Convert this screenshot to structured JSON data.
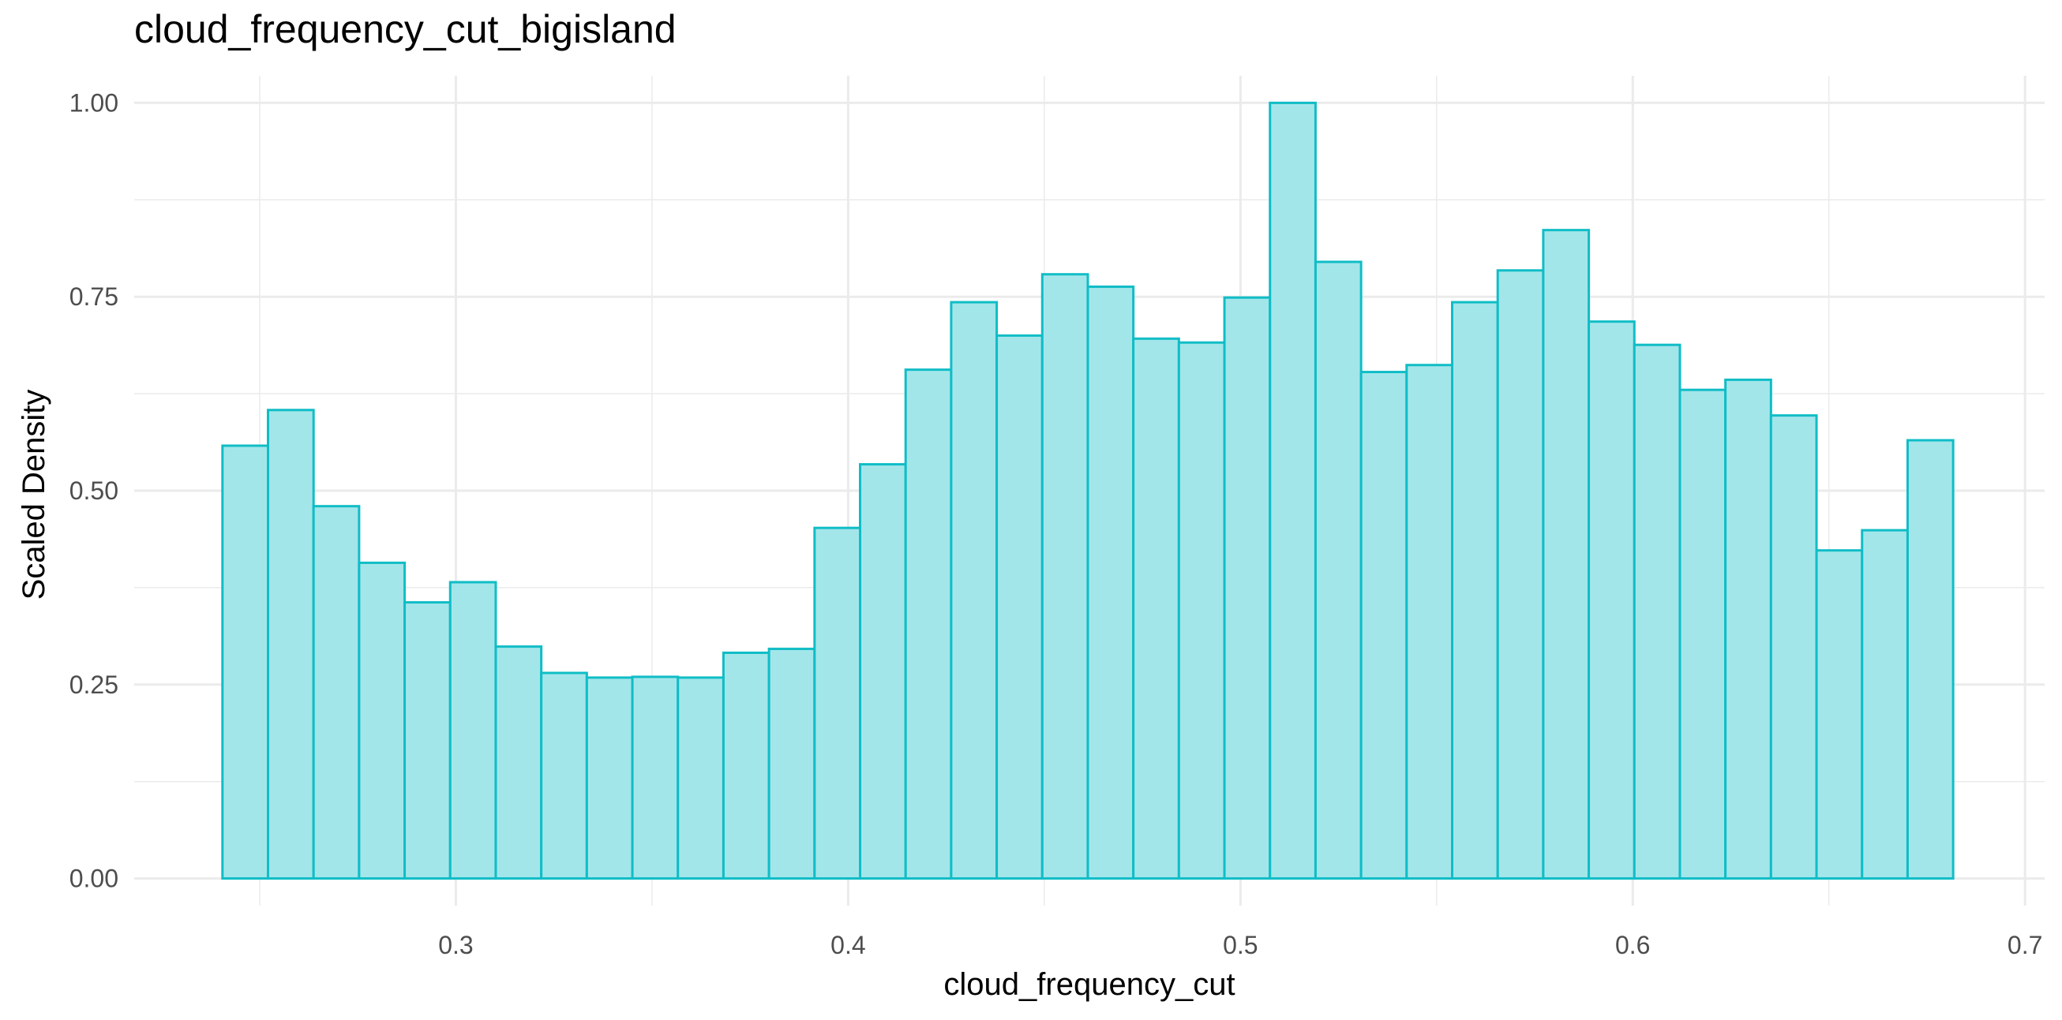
{
  "chart_data": {
    "type": "bar",
    "title": "cloud_frequency_cut_bigisland",
    "xlabel": "cloud_frequency_cut",
    "ylabel": "Scaled Density",
    "xlim": [
      0.218,
      0.705
    ],
    "ylim": [
      -0.035,
      1.035
    ],
    "x_ticks": [
      0.3,
      0.4,
      0.5,
      0.6,
      0.7
    ],
    "x_tick_labels": [
      "0.3",
      "0.4",
      "0.5",
      "0.6",
      "0.7"
    ],
    "y_ticks": [
      0,
      0.25,
      0.5,
      0.75,
      1.0
    ],
    "y_tick_labels": [
      "0.00",
      "0.25",
      "0.50",
      "0.75",
      "1.00"
    ],
    "grid": true,
    "bin_start": 0.2405,
    "bin_width": 0.01161,
    "values": [
      0.558,
      0.604,
      0.48,
      0.407,
      0.356,
      0.382,
      0.299,
      0.265,
      0.259,
      0.26,
      0.259,
      0.291,
      0.296,
      0.452,
      0.534,
      0.656,
      0.743,
      0.7,
      0.779,
      0.763,
      0.696,
      0.691,
      0.749,
      1.0,
      0.795,
      0.653,
      0.662,
      0.743,
      0.784,
      0.836,
      0.718,
      0.688,
      0.63,
      0.643,
      0.597,
      0.423,
      0.449,
      0.565
    ],
    "colors": {
      "fill": "#a3e6ea",
      "stroke": "#10bdc6",
      "grid": "#ebebeb"
    }
  }
}
